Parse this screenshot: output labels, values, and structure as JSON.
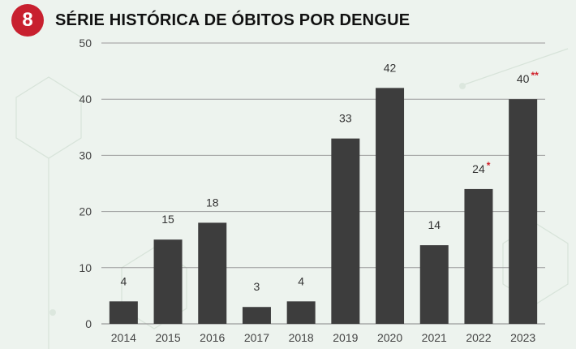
{
  "header": {
    "badge_number": "8",
    "title": "SÉRIE HISTÓRICA DE ÓBITOS POR DENGUE"
  },
  "colors": {
    "badge": "#c8202f",
    "bar": "#3d3d3d",
    "grid": "#9a9a9a",
    "annotation_mark": "#d0202a",
    "background": "#edf3ee"
  },
  "chart_data": {
    "type": "bar",
    "categories": [
      "2014",
      "2015",
      "2016",
      "2017",
      "2018",
      "2019",
      "2020",
      "2021",
      "2022",
      "2023"
    ],
    "values": [
      4,
      15,
      18,
      3,
      4,
      33,
      42,
      14,
      24,
      40
    ],
    "data_labels": [
      "4",
      "15",
      "18",
      "3",
      "4",
      "33",
      "42",
      "14",
      "24",
      "40"
    ],
    "annotation_marks": [
      "",
      "",
      "",
      "",
      "",
      "",
      "",
      "",
      "*",
      "**"
    ],
    "title": "SÉRIE HISTÓRICA DE ÓBITOS POR DENGUE",
    "xlabel": "",
    "ylabel": "",
    "ylim": [
      0,
      50
    ],
    "yticks": [
      0,
      10,
      20,
      30,
      40,
      50
    ],
    "grid": true,
    "legend": "none"
  }
}
